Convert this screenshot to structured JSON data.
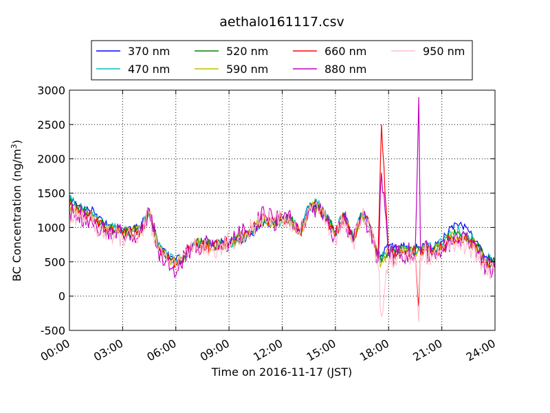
{
  "chart_data": {
    "type": "line",
    "title": "aethalo161117.csv",
    "xlabel": "Time on 2016-11-17 (JST)",
    "ylabel": "BC Concentration (ng/m",
    "ylabel_sup": "3",
    "ylabel_close": ")",
    "xlim": [
      "2016-11-17 00:00",
      "2016-11-18 00:00"
    ],
    "ylim": [
      -500,
      3000
    ],
    "x_ticks": [
      "00:00",
      "03:00",
      "06:00",
      "09:00",
      "12:00",
      "15:00",
      "18:00",
      "21:00",
      "24:00"
    ],
    "y_ticks": [
      "-500",
      "0",
      "500",
      "1000",
      "1500",
      "2000",
      "2500",
      "3000"
    ],
    "grid": true,
    "legend_position": "top-center",
    "x_hours": [
      0,
      0.5,
      1,
      1.5,
      2,
      2.5,
      3,
      3.5,
      4,
      4.5,
      5,
      5.5,
      6,
      6.5,
      7,
      7.5,
      8,
      8.5,
      9,
      9.5,
      10,
      10.5,
      11,
      11.5,
      12,
      12.5,
      13,
      13.5,
      14,
      14.5,
      15,
      15.5,
      16,
      16.5,
      17,
      17.4,
      17.6,
      18,
      18.5,
      19,
      19.5,
      19.7,
      19.8,
      20,
      20.5,
      21,
      21.5,
      22,
      22.5,
      23,
      23.5,
      24
    ],
    "series": [
      {
        "name": "370 nm",
        "color": "#0000ff",
        "values": [
          1450,
          1320,
          1300,
          1200,
          1050,
          1000,
          950,
          960,
          1000,
          1270,
          750,
          600,
          520,
          600,
          780,
          800,
          760,
          760,
          750,
          800,
          860,
          950,
          1080,
          1050,
          1120,
          1100,
          950,
          1300,
          1350,
          1150,
          950,
          1200,
          850,
          1200,
          1000,
          650,
          600,
          720,
          720,
          730,
          700,
          720,
          700,
          760,
          700,
          800,
          1000,
          1050,
          950,
          800,
          580,
          550
        ]
      },
      {
        "name": "470 nm",
        "color": "#00bfbf",
        "values": [
          1400,
          1280,
          1260,
          1150,
          1020,
          980,
          930,
          940,
          980,
          1260,
          730,
          590,
          500,
          600,
          770,
          790,
          740,
          760,
          760,
          820,
          880,
          980,
          1100,
          1060,
          1120,
          1100,
          940,
          1300,
          1340,
          1140,
          940,
          1180,
          840,
          1200,
          1000,
          600,
          520,
          680,
          680,
          700,
          680,
          700,
          680,
          720,
          680,
          760,
          920,
          950,
          880,
          760,
          540,
          500
        ]
      },
      {
        "name": "520 nm",
        "color": "#008000",
        "values": [
          1360,
          1250,
          1230,
          1120,
          1000,
          960,
          920,
          930,
          970,
          1250,
          720,
          580,
          490,
          600,
          760,
          780,
          730,
          760,
          770,
          830,
          900,
          1000,
          1120,
          1070,
          1120,
          1100,
          930,
          1290,
          1330,
          1130,
          930,
          1170,
          830,
          1200,
          1000,
          580,
          500,
          660,
          660,
          680,
          660,
          680,
          660,
          700,
          660,
          730,
          880,
          900,
          840,
          730,
          520,
          480
        ]
      },
      {
        "name": "590 nm",
        "color": "#bfbf00",
        "values": [
          1330,
          1230,
          1210,
          1100,
          990,
          950,
          910,
          920,
          960,
          1240,
          710,
          570,
          480,
          600,
          760,
          780,
          720,
          760,
          770,
          840,
          910,
          1010,
          1130,
          1080,
          1130,
          1110,
          930,
          1290,
          1320,
          1120,
          920,
          1160,
          820,
          1200,
          1000,
          560,
          480,
          640,
          640,
          670,
          650,
          670,
          650,
          690,
          650,
          720,
          860,
          880,
          820,
          710,
          500,
          460
        ]
      },
      {
        "name": "660 nm",
        "color": "#ff0000",
        "values": [
          1300,
          1210,
          1190,
          1080,
          980,
          940,
          900,
          910,
          950,
          1230,
          700,
          560,
          470,
          600,
          750,
          770,
          710,
          760,
          780,
          850,
          920,
          1020,
          1150,
          1090,
          1130,
          1110,
          920,
          1280,
          1310,
          1110,
          910,
          1150,
          810,
          1200,
          1000,
          550,
          2500,
          620,
          620,
          650,
          640,
          -150,
          640,
          680,
          640,
          700,
          840,
          860,
          800,
          690,
          490,
          450
        ]
      },
      {
        "name": "880 nm",
        "color": "#bf00bf",
        "values": [
          1250,
          1180,
          1160,
          1050,
          960,
          920,
          890,
          900,
          940,
          1220,
          680,
          540,
          300,
          620,
          740,
          770,
          700,
          760,
          800,
          880,
          950,
          1060,
          1200,
          1100,
          1140,
          1120,
          910,
          1270,
          1300,
          1100,
          880,
          1120,
          780,
          1200,
          1000,
          500,
          1800,
          600,
          600,
          630,
          620,
          2900,
          620,
          660,
          620,
          680,
          800,
          820,
          760,
          650,
          420,
          400
        ]
      },
      {
        "name": "950 nm",
        "color": "#ffc0cb",
        "values": [
          1200,
          1150,
          1120,
          1000,
          930,
          900,
          870,
          880,
          920,
          1200,
          660,
          520,
          420,
          600,
          720,
          750,
          680,
          740,
          780,
          860,
          920,
          1040,
          1180,
          1080,
          1120,
          1100,
          880,
          1250,
          1280,
          1080,
          860,
          1100,
          760,
          1180,
          980,
          450,
          -300,
          560,
          560,
          600,
          600,
          -380,
          600,
          630,
          590,
          650,
          760,
          780,
          720,
          620,
          380,
          350
        ]
      }
    ]
  }
}
